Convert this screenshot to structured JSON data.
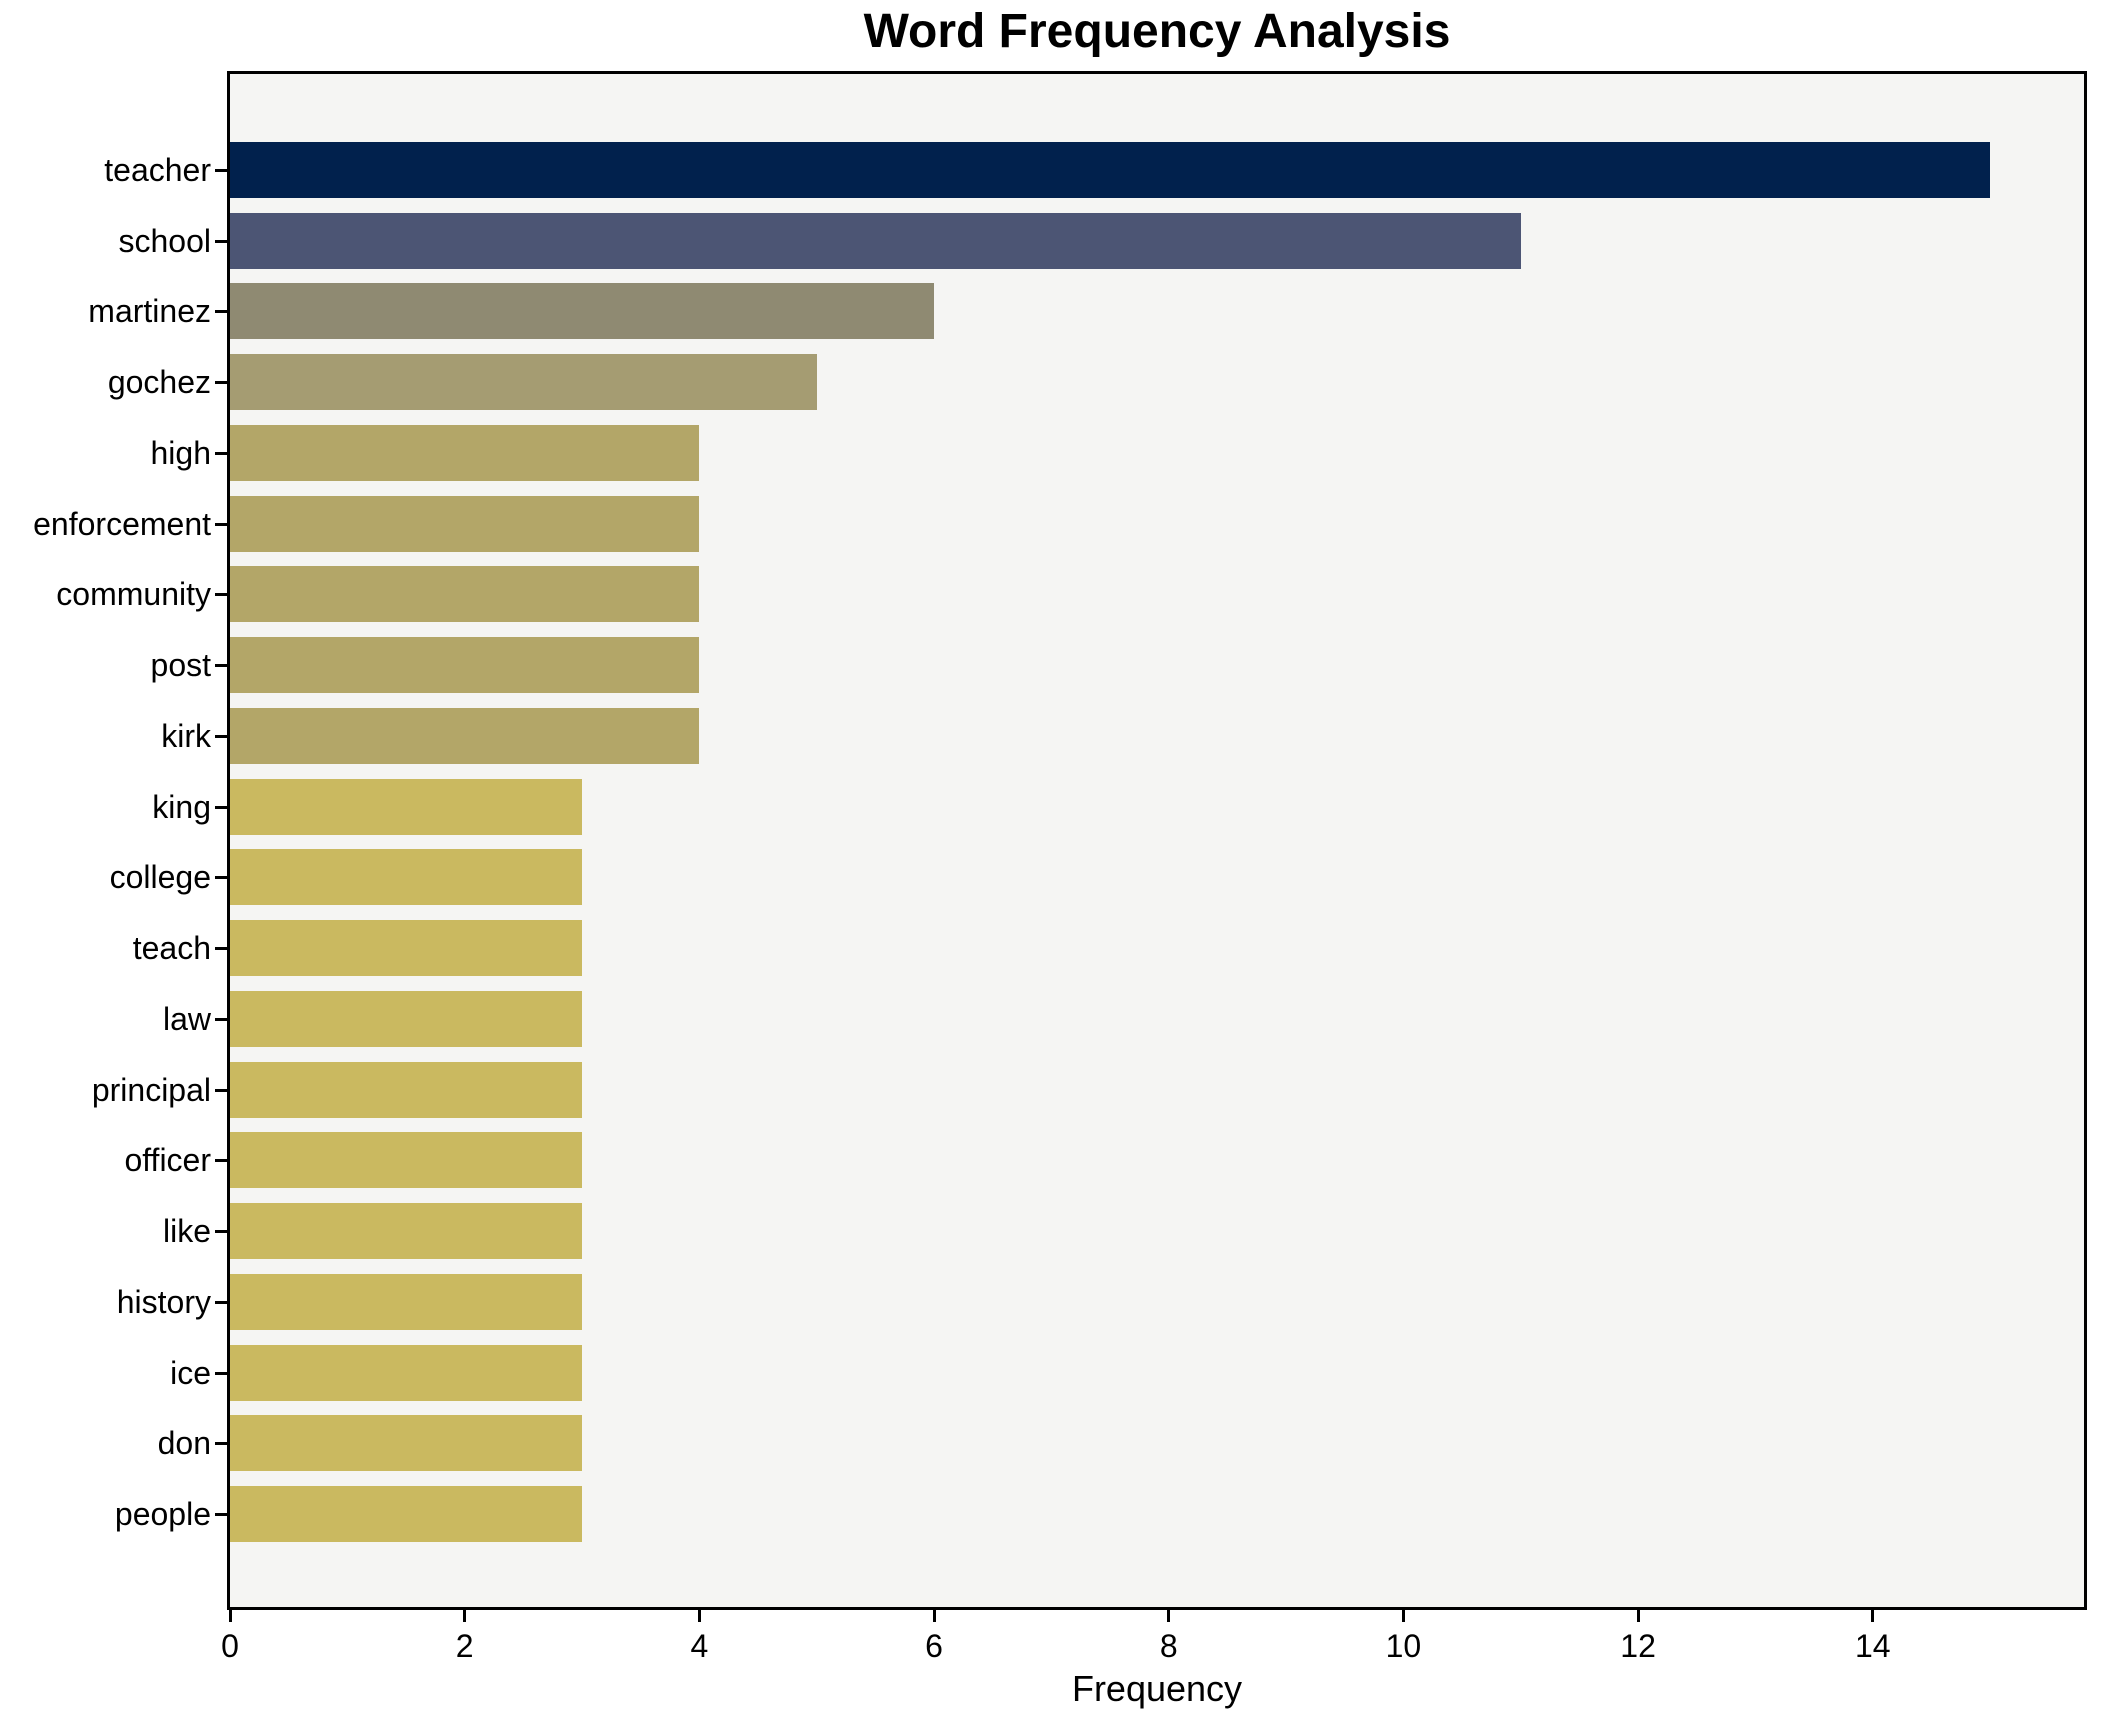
{
  "chart_data": {
    "type": "bar",
    "orientation": "horizontal",
    "title": "Word Frequency Analysis",
    "xlabel": "Frequency",
    "ylabel": "",
    "categories": [
      "teacher",
      "school",
      "martinez",
      "gochez",
      "high",
      "enforcement",
      "community",
      "post",
      "kirk",
      "king",
      "college",
      "teach",
      "law",
      "principal",
      "officer",
      "like",
      "history",
      "ice",
      "don",
      "people"
    ],
    "values": [
      15,
      11,
      6,
      5,
      4,
      4,
      4,
      4,
      4,
      3,
      3,
      3,
      3,
      3,
      3,
      3,
      3,
      3,
      3,
      3
    ],
    "bar_colors": [
      "#01214d",
      "#4c5574",
      "#8f8a72",
      "#a59c72",
      "#b3a668",
      "#b3a668",
      "#b3a668",
      "#b3a668",
      "#b3a668",
      "#cab960",
      "#cab960",
      "#cab960",
      "#cab960",
      "#cab960",
      "#cab960",
      "#cab960",
      "#cab960",
      "#cab960",
      "#cab960",
      "#cab960"
    ],
    "xlim": [
      0,
      15.8
    ],
    "xticks": [
      0,
      2,
      4,
      6,
      8,
      10,
      12,
      14
    ],
    "grid": "off",
    "legend": "none",
    "plot_background": "#f5f5f3",
    "figure_background": "#ffffff",
    "axis_color": "#000000"
  }
}
